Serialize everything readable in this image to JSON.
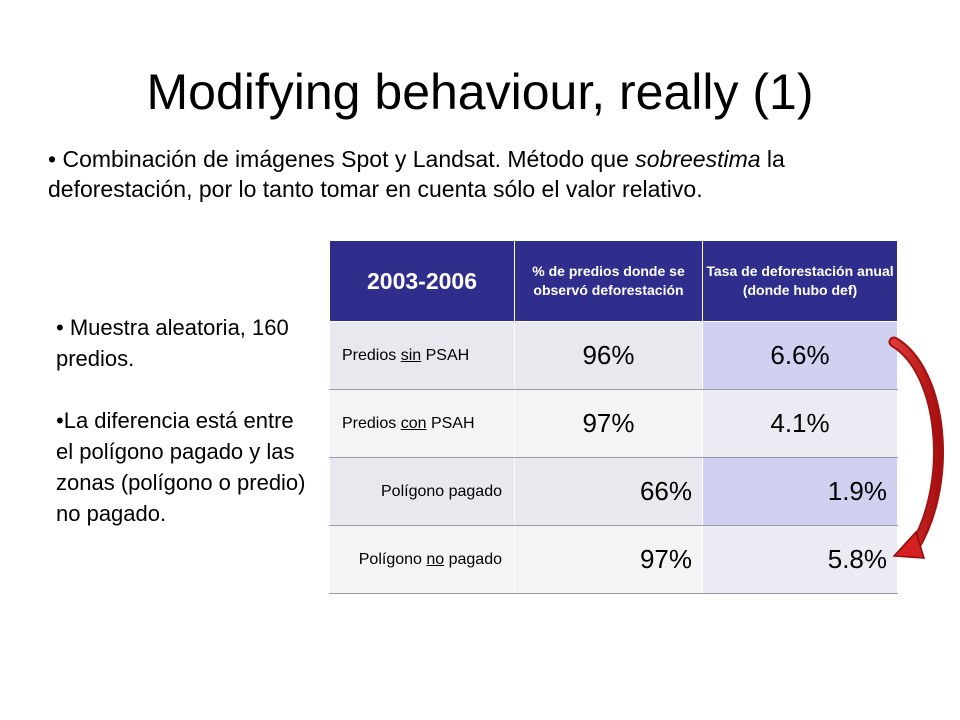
{
  "slide": {
    "title": "Modifying behaviour, really (1)",
    "bullet_main": {
      "part1": "Combinación de imágenes Spot y Landsat.  Método que ",
      "italic": "sobreestima",
      "part2": " la deforestación, por lo tanto tomar en cuenta sólo el valor relativo."
    },
    "side_bullets": [
      "Muestra aleatoria, 160 predios.",
      "La diferencia está entre el polígono pagado y las zonas (polígono o predio) no pagado."
    ]
  },
  "table": {
    "headers": {
      "year": "2003-2006",
      "pct": "% de predios donde se observó deforestación",
      "rate": "Tasa de deforestación anual (donde hubo def)"
    },
    "rows": [
      {
        "label_pre": "Predios ",
        "label_u": "sin",
        "label_post": " PSAH",
        "pct": "96%",
        "rate": "6.6%"
      },
      {
        "label_pre": "Predios ",
        "label_u": "con",
        "label_post": " PSAH",
        "pct": "97%",
        "rate": "4.1%"
      },
      {
        "label_pre": "Polígono pagado",
        "label_u": "",
        "label_post": "",
        "pct": "66%",
        "rate": "1.9%"
      },
      {
        "label_pre": "Polígono ",
        "label_u": "no",
        "label_post": " pagado",
        "pct": "97%",
        "rate": "5.8%"
      }
    ]
  },
  "colors": {
    "header_bg": "#2f2e8c",
    "arrow": "#cc1a1a"
  }
}
